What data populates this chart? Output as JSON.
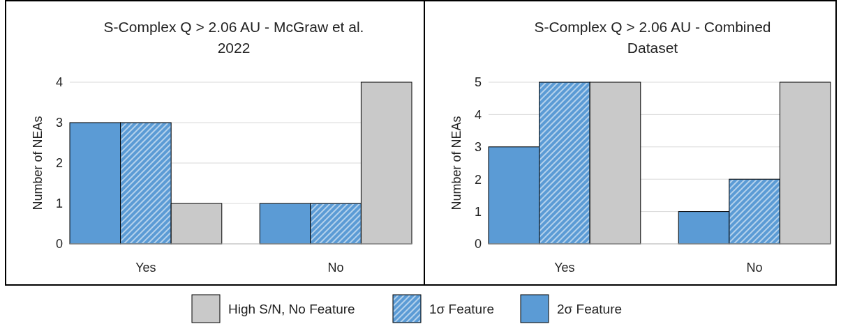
{
  "chart_data": [
    {
      "type": "bar",
      "title": "S-Complex Q > 2.06 AU - McGraw et al. 2022",
      "ylabel": "Number of NEAs",
      "categories": [
        "Yes",
        "No"
      ],
      "series": [
        {
          "name": "2σ Feature",
          "color": "#5b9bd5",
          "values": [
            3,
            1
          ]
        },
        {
          "name": "1σ Feature",
          "color": "#5b9bd5",
          "values": [
            3,
            1
          ]
        },
        {
          "name": "High S/N, No Feature",
          "color": "#c9c9c9",
          "values": [
            1,
            4
          ]
        }
      ],
      "ylim": [
        0,
        4
      ],
      "yticks": [
        0,
        1,
        2,
        3,
        4
      ],
      "grid": "y",
      "legend": "bottom"
    },
    {
      "type": "bar",
      "title": "S-Complex Q > 2.06 AU - Combined Dataset",
      "ylabel": "Number of NEAs",
      "categories": [
        "Yes",
        "No"
      ],
      "series": [
        {
          "name": "2σ Feature",
          "color": "#5b9bd5",
          "values": [
            3,
            1
          ]
        },
        {
          "name": "1σ Feature",
          "color": "#5b9bd5",
          "values": [
            5,
            2
          ]
        },
        {
          "name": "High S/N, No Feature",
          "color": "#c9c9c9",
          "values": [
            5,
            5
          ]
        }
      ],
      "ylim": [
        0,
        5
      ],
      "yticks": [
        0,
        1,
        2,
        3,
        4,
        5
      ],
      "grid": "y",
      "legend": "bottom"
    }
  ]
}
